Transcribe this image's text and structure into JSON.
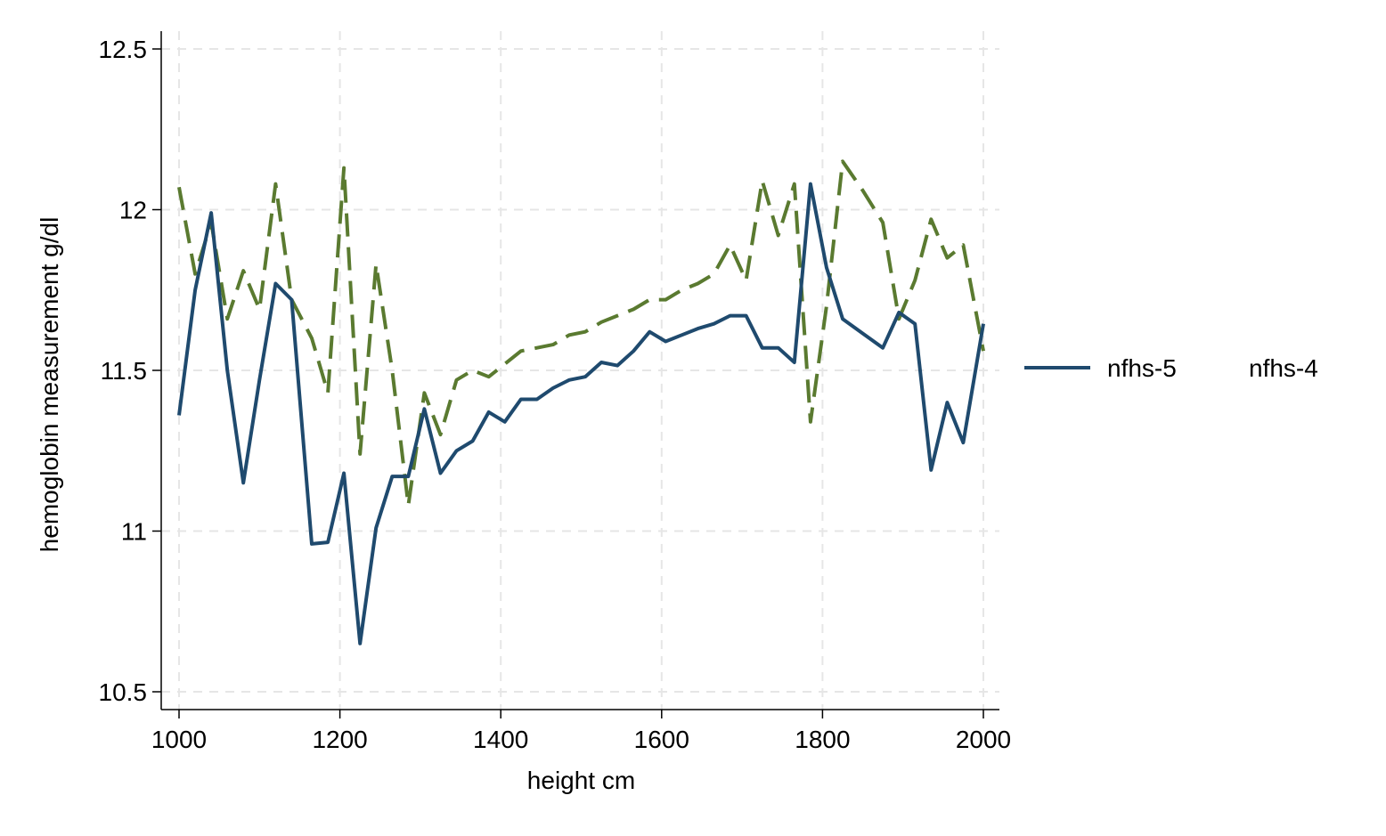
{
  "chart_data": {
    "type": "line",
    "title": "",
    "xlabel": "height cm",
    "ylabel": "hemoglobin measurement g/dl",
    "xlim": [
      1000,
      2000
    ],
    "ylim": [
      10.5,
      12.5
    ],
    "x_ticks": [
      1000,
      1200,
      1400,
      1600,
      1800,
      2000
    ],
    "y_ticks": [
      10.5,
      11,
      11.5,
      12,
      12.5
    ],
    "x_tick_labels": [
      "1000",
      "1200",
      "1400",
      "1600",
      "1800",
      "2000"
    ],
    "y_tick_labels": [
      "10.5",
      "11",
      "11.5",
      "12",
      "12.5"
    ],
    "grid": true,
    "legend": "right",
    "series": [
      {
        "name": "nfhs-5",
        "color": "#1f4a6e",
        "style": "solid",
        "x": [
          1000,
          1020,
          1040,
          1060,
          1080,
          1100,
          1120,
          1140,
          1165,
          1185,
          1205,
          1225,
          1245,
          1265,
          1285,
          1305,
          1325,
          1345,
          1365,
          1385,
          1405,
          1425,
          1445,
          1465,
          1485,
          1505,
          1525,
          1545,
          1565,
          1585,
          1605,
          1625,
          1645,
          1665,
          1685,
          1705,
          1725,
          1745,
          1765,
          1785,
          1805,
          1825,
          1850,
          1875,
          1895,
          1915,
          1935,
          1955,
          1975,
          2000
        ],
        "values": [
          11.36,
          11.75,
          11.99,
          11.5,
          11.15,
          11.47,
          11.77,
          11.72,
          10.96,
          10.965,
          11.18,
          10.65,
          11.01,
          11.17,
          11.17,
          11.38,
          11.18,
          11.25,
          11.28,
          11.37,
          11.34,
          11.41,
          11.41,
          11.445,
          11.47,
          11.48,
          11.525,
          11.515,
          11.56,
          11.62,
          11.59,
          11.61,
          11.63,
          11.645,
          11.67,
          11.67,
          11.57,
          11.57,
          11.525,
          12.08,
          11.82,
          11.66,
          11.615,
          11.57,
          11.68,
          11.645,
          11.19,
          11.4,
          11.275,
          11.645
        ]
      },
      {
        "name": "nfhs-4",
        "color": "#5a7a30",
        "style": "dashed",
        "x": [
          1000,
          1020,
          1040,
          1060,
          1080,
          1100,
          1120,
          1140,
          1165,
          1185,
          1205,
          1225,
          1245,
          1265,
          1285,
          1305,
          1325,
          1345,
          1365,
          1385,
          1405,
          1425,
          1445,
          1465,
          1485,
          1505,
          1525,
          1545,
          1565,
          1585,
          1605,
          1625,
          1645,
          1665,
          1685,
          1705,
          1725,
          1745,
          1765,
          1785,
          1805,
          1825,
          1850,
          1875,
          1895,
          1915,
          1935,
          1955,
          1975,
          2000
        ],
        "values": [
          12.07,
          11.8,
          11.96,
          11.66,
          11.81,
          11.69,
          12.08,
          11.72,
          11.6,
          11.43,
          12.13,
          11.24,
          11.83,
          11.5,
          11.08,
          11.43,
          11.3,
          11.47,
          11.5,
          11.48,
          11.52,
          11.56,
          11.57,
          11.58,
          11.61,
          11.62,
          11.65,
          11.67,
          11.69,
          11.72,
          11.72,
          11.75,
          11.77,
          11.8,
          11.89,
          11.78,
          12.09,
          11.92,
          12.08,
          11.34,
          11.7,
          12.15,
          12.06,
          11.96,
          11.66,
          11.78,
          11.97,
          11.85,
          11.89,
          11.56
        ]
      }
    ]
  }
}
